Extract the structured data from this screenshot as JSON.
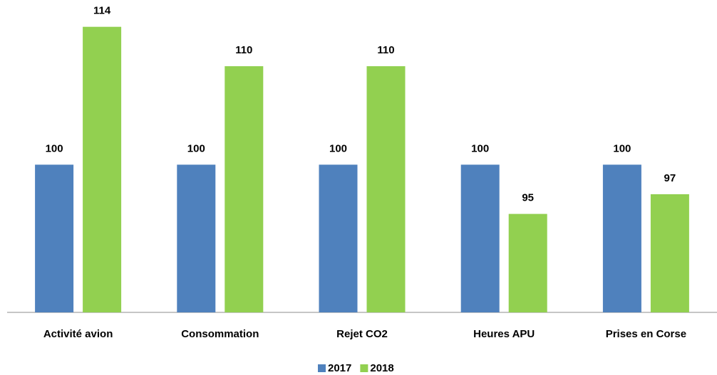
{
  "chart_data": {
    "type": "bar",
    "categories": [
      "Activité avion",
      "Consommation",
      "Rejet CO2",
      "Heures APU",
      "Prises en Corse"
    ],
    "series": [
      {
        "name": "2017",
        "color": "#4f81bd",
        "values": [
          100,
          100,
          100,
          100,
          100
        ]
      },
      {
        "name": "2018",
        "color": "#92d050",
        "values": [
          114,
          110,
          110,
          95,
          97
        ]
      }
    ],
    "ylim": [
      85,
      116
    ],
    "legend": "bottom"
  }
}
